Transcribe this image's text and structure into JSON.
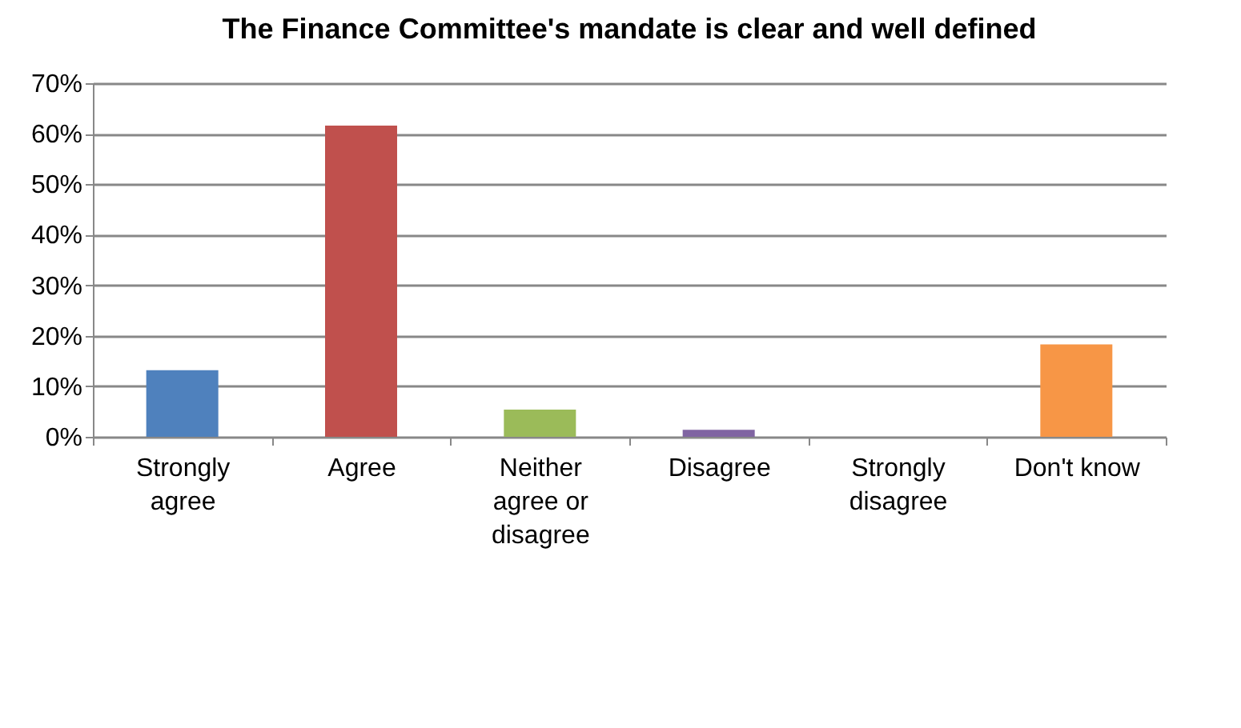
{
  "chart_data": {
    "type": "bar",
    "title": "The Finance Committee's mandate is clear and well defined",
    "categories": [
      "Strongly agree",
      "Agree",
      "Neither agree or disagree",
      "Disagree",
      "Strongly disagree",
      "Don't know"
    ],
    "values": [
      13.2,
      61.6,
      5.4,
      1.4,
      0,
      18.3
    ],
    "colors": [
      "#4f81bd",
      "#c0504d",
      "#9bbb59",
      "#8064a2",
      "#4bacc6",
      "#f79646"
    ],
    "ylim": [
      0,
      70
    ],
    "yticks": [
      {
        "value": 0,
        "label": "0%"
      },
      {
        "value": 10,
        "label": "10%"
      },
      {
        "value": 20,
        "label": "20%"
      },
      {
        "value": 30,
        "label": "30%"
      },
      {
        "value": 40,
        "label": "40%"
      },
      {
        "value": 50,
        "label": "50%"
      },
      {
        "value": 60,
        "label": "60%"
      },
      {
        "value": 70,
        "label": "70%"
      }
    ],
    "grid": "y",
    "legend": false
  }
}
